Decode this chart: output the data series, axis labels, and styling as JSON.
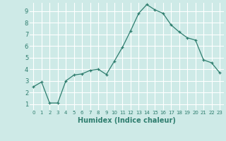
{
  "x": [
    0,
    1,
    2,
    3,
    4,
    5,
    6,
    7,
    8,
    9,
    10,
    11,
    12,
    13,
    14,
    15,
    16,
    17,
    18,
    19,
    20,
    21,
    22,
    23
  ],
  "y": [
    2.5,
    2.9,
    1.1,
    1.1,
    3.0,
    3.5,
    3.6,
    3.9,
    4.0,
    3.55,
    4.7,
    5.9,
    7.3,
    8.8,
    9.55,
    9.1,
    8.8,
    7.8,
    7.2,
    6.7,
    6.5,
    4.8,
    4.55,
    3.7
  ],
  "xlabel": "Humidex (Indice chaleur)",
  "ylim": [
    0.5,
    9.7
  ],
  "xlim": [
    -0.5,
    23.5
  ],
  "line_color": "#2e7d6e",
  "bg_color": "#ceeae7",
  "grid_color": "#ffffff",
  "tick_color": "#2e7d6e",
  "label_color": "#2e7d6e",
  "xlabel_fontsize": 7,
  "yticks": [
    1,
    2,
    3,
    4,
    5,
    6,
    7,
    8,
    9
  ],
  "xtick_labels": [
    "0",
    "1",
    "2",
    "3",
    "4",
    "5",
    "6",
    "7",
    "8",
    "9",
    "10",
    "11",
    "12",
    "13",
    "14",
    "15",
    "16",
    "17",
    "18",
    "19",
    "20",
    "21",
    "22",
    "23"
  ]
}
